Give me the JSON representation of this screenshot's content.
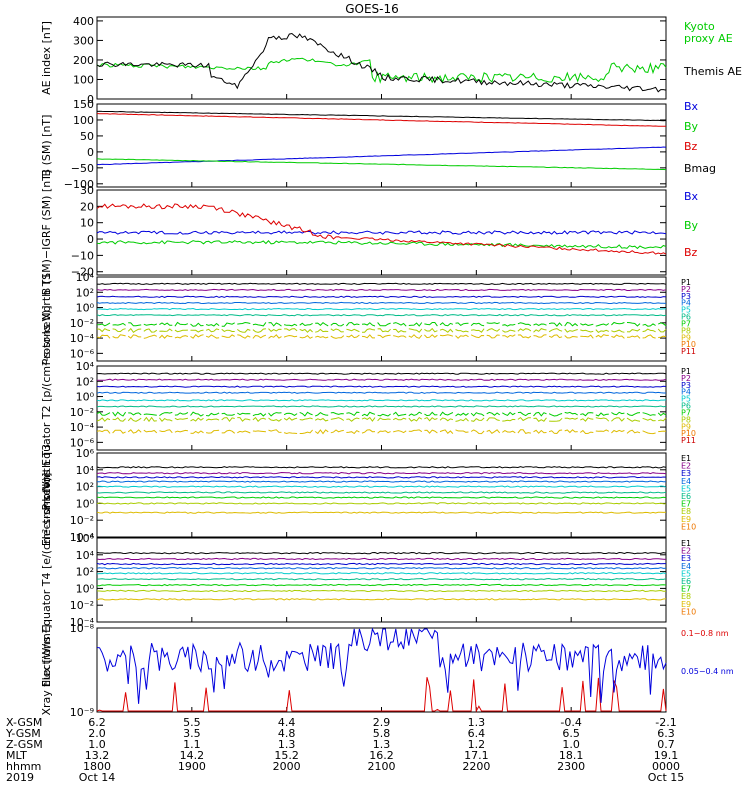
{
  "title": "GOES-16",
  "colors": {
    "black": "#000000",
    "red": "#dd0000",
    "green": "#00cc00",
    "blue": "#0000dd",
    "p": [
      "#000000",
      "#880088",
      "#0000cc",
      "#0066dd",
      "#00cccc",
      "#00bb88",
      "#00cc00",
      "#aacc00",
      "#ddbb00",
      "#ee7700",
      "#cc0000"
    ],
    "e": [
      "#000000",
      "#880088",
      "#0000cc",
      "#0066dd",
      "#00cccc",
      "#00bb88",
      "#00cc00",
      "#aacc00",
      "#ddbb00",
      "#ee7700"
    ]
  },
  "chart_data": [
    {
      "type": "line",
      "ylabel": "AE index [nT]",
      "ylim": [
        0,
        420
      ],
      "yticks": [
        {
          "v": 0,
          "t": "0"
        },
        {
          "v": 100,
          "t": "100"
        },
        {
          "v": 200,
          "t": "200"
        },
        {
          "v": 300,
          "t": "300"
        },
        {
          "v": 400,
          "t": "400"
        }
      ],
      "series": [
        {
          "name": "Kyoto\nproxy AE",
          "color": "green",
          "shape": "ae_kyoto"
        },
        {
          "name": "Themis AE",
          "color": "black",
          "shape": "ae_themis"
        }
      ]
    },
    {
      "type": "line",
      "ylabel": "B (SM) [nT]",
      "ylim": [
        -110,
        150
      ],
      "yticks": [
        {
          "v": -100,
          "t": "−100"
        },
        {
          "v": -50,
          "t": "−50"
        },
        {
          "v": 0,
          "t": "0"
        },
        {
          "v": 50,
          "t": "50"
        },
        {
          "v": 100,
          "t": "100"
        },
        {
          "v": 150,
          "t": "150"
        }
      ],
      "series": [
        {
          "name": "Bx",
          "color": "blue",
          "from": -40,
          "to": 15
        },
        {
          "name": "By",
          "color": "green",
          "from": -22,
          "to": -55
        },
        {
          "name": "Bz",
          "color": "red",
          "from": 120,
          "to": 80
        },
        {
          "name": "Bmag",
          "color": "black",
          "from": 127,
          "to": 98
        }
      ]
    },
    {
      "type": "line",
      "ylabel": "B (SM)−IGRF (SM) [nT]",
      "ylim": [
        -22,
        30
      ],
      "yticks": [
        {
          "v": -20,
          "t": "−20"
        },
        {
          "v": -10,
          "t": "−10"
        },
        {
          "v": 0,
          "t": "0"
        },
        {
          "v": 10,
          "t": "10"
        },
        {
          "v": 20,
          "t": "20"
        },
        {
          "v": 30,
          "t": "30"
        }
      ],
      "series": [
        {
          "name": "Bx",
          "color": "blue",
          "shape": "dbx"
        },
        {
          "name": "By",
          "color": "green",
          "shape": "dby"
        },
        {
          "name": "Bz",
          "color": "red",
          "shape": "dbz"
        }
      ]
    },
    {
      "type": "line",
      "ylabel": "Protons North T1",
      "log": true,
      "ylim": [
        -7,
        4
      ],
      "yticks": [
        {
          "v": -6,
          "t": "10⁻⁶"
        },
        {
          "v": -4,
          "t": "10⁻⁴"
        },
        {
          "v": -2,
          "t": "10⁻²"
        },
        {
          "v": 0,
          "t": "10⁰"
        },
        {
          "v": 2,
          "t": "10²"
        },
        {
          "v": 4,
          "t": "10⁴"
        }
      ],
      "series": [
        {
          "name": "P1",
          "level": 3.1
        },
        {
          "name": "P2",
          "level": 2.3
        },
        {
          "name": "P3",
          "level": 1.4
        },
        {
          "name": "P4",
          "level": 0.6
        },
        {
          "name": "P5",
          "level": -0.2
        },
        {
          "name": "P6",
          "level": -1.0
        },
        {
          "name": "P7",
          "level": -2.2
        },
        {
          "name": "P8",
          "level": -3.0
        },
        {
          "name": "P9",
          "level": -3.8
        },
        {
          "name": "P10",
          "level": -99
        },
        {
          "name": "P11",
          "level": -99
        }
      ]
    },
    {
      "type": "line",
      "ylabel": "Protons Equator T2 [p/(cm²-s-sr-keV)]",
      "log": true,
      "ylim": [
        -7,
        4
      ],
      "yticks": [
        {
          "v": -6,
          "t": "10⁻⁶"
        },
        {
          "v": -4,
          "t": "10⁻⁴"
        },
        {
          "v": -2,
          "t": "10⁻²"
        },
        {
          "v": 0,
          "t": "10⁰"
        },
        {
          "v": 2,
          "t": "10²"
        },
        {
          "v": 4,
          "t": "10⁴"
        }
      ],
      "series": [
        {
          "name": "P1",
          "level": 3.0
        },
        {
          "name": "P2",
          "level": 2.2
        },
        {
          "name": "P3",
          "level": 1.3
        },
        {
          "name": "P4",
          "level": 0.5
        },
        {
          "name": "P5",
          "level": -0.5
        },
        {
          "name": "P6",
          "level": -1.3
        },
        {
          "name": "P7",
          "level": -2.3
        },
        {
          "name": "P8",
          "level": -3.0
        },
        {
          "name": "P9",
          "level": -4.6
        },
        {
          "name": "P10",
          "level": -99
        },
        {
          "name": "P11",
          "level": -99
        }
      ]
    },
    {
      "type": "line",
      "ylabel": "Electrons North T3",
      "log": true,
      "ylim": [
        -4,
        6
      ],
      "yticks": [
        {
          "v": -4,
          "t": "10⁻⁴"
        },
        {
          "v": -2,
          "t": "10⁻²"
        },
        {
          "v": 0,
          "t": "10⁰"
        },
        {
          "v": 2,
          "t": "10²"
        },
        {
          "v": 4,
          "t": "10⁴"
        },
        {
          "v": 6,
          "t": "10⁶"
        }
      ],
      "series": [
        {
          "name": "E1",
          "level": 4.3
        },
        {
          "name": "E2",
          "level": 3.6
        },
        {
          "name": "E3",
          "level": 3.1
        },
        {
          "name": "E4",
          "level": 2.6
        },
        {
          "name": "E5",
          "level": 2.0
        },
        {
          "name": "E6",
          "level": 1.3
        },
        {
          "name": "E7",
          "level": 0.7
        },
        {
          "name": "E8",
          "level": 0.0
        },
        {
          "name": "E9",
          "level": -1.1
        },
        {
          "name": "E10",
          "level": -99
        }
      ]
    },
    {
      "type": "line",
      "ylabel": "Electrons Equator T4 [e/(cm²-s-sr-keV)]",
      "log": true,
      "ylim": [
        -4,
        6
      ],
      "yticks": [
        {
          "v": -4,
          "t": "10⁻⁴"
        },
        {
          "v": -2,
          "t": "10⁻²"
        },
        {
          "v": 0,
          "t": "10⁰"
        },
        {
          "v": 2,
          "t": "10²"
        },
        {
          "v": 4,
          "t": "10⁴"
        },
        {
          "v": 6,
          "t": "10⁶"
        }
      ],
      "series": [
        {
          "name": "E1",
          "level": 4.2
        },
        {
          "name": "E2",
          "level": 3.5
        },
        {
          "name": "E3",
          "level": 2.9
        },
        {
          "name": "E4",
          "level": 2.4
        },
        {
          "name": "E5",
          "level": 1.8
        },
        {
          "name": "E6",
          "level": 1.1
        },
        {
          "name": "E7",
          "level": 0.4
        },
        {
          "name": "E8",
          "level": -0.3
        },
        {
          "name": "E9",
          "level": -1.3
        },
        {
          "name": "E10",
          "level": -99
        }
      ]
    },
    {
      "type": "line",
      "ylabel": "Xray flux [W/m²]",
      "log": true,
      "ylim": [
        -9,
        -8
      ],
      "yticks": [
        {
          "v": -9,
          "t": "10⁻⁹"
        },
        {
          "v": -8,
          "t": "10⁻⁸"
        }
      ],
      "series": [
        {
          "name": "0.1−0.8 nm",
          "color": "red",
          "shape": "xray_long"
        },
        {
          "name": "0.05−0.4 nm",
          "color": "blue",
          "shape": "xray_short"
        }
      ]
    }
  ],
  "ephemeris": {
    "rows": [
      {
        "name": "X-GSM",
        "values": [
          "6.2",
          "5.5",
          "4.4",
          "2.9",
          "1.3",
          "-0.4",
          "-2.1"
        ]
      },
      {
        "name": "Y-GSM",
        "values": [
          "2.0",
          "3.5",
          "4.8",
          "5.8",
          "6.4",
          "6.5",
          "6.3"
        ]
      },
      {
        "name": "Z-GSM",
        "values": [
          "1.0",
          "1.1",
          "1.3",
          "1.3",
          "1.2",
          "1.0",
          "0.7"
        ]
      },
      {
        "name": "MLT",
        "values": [
          "13.2",
          "14.2",
          "15.2",
          "16.2",
          "17.1",
          "18.1",
          "19.1"
        ]
      },
      {
        "name": "hhmm",
        "values": [
          "1800",
          "1900",
          "2000",
          "2100",
          "2200",
          "2300",
          "0000"
        ]
      },
      {
        "name": "2019",
        "values": [
          "Oct 14",
          "",
          "",
          "",
          "",
          "",
          "Oct 15"
        ]
      }
    ]
  }
}
